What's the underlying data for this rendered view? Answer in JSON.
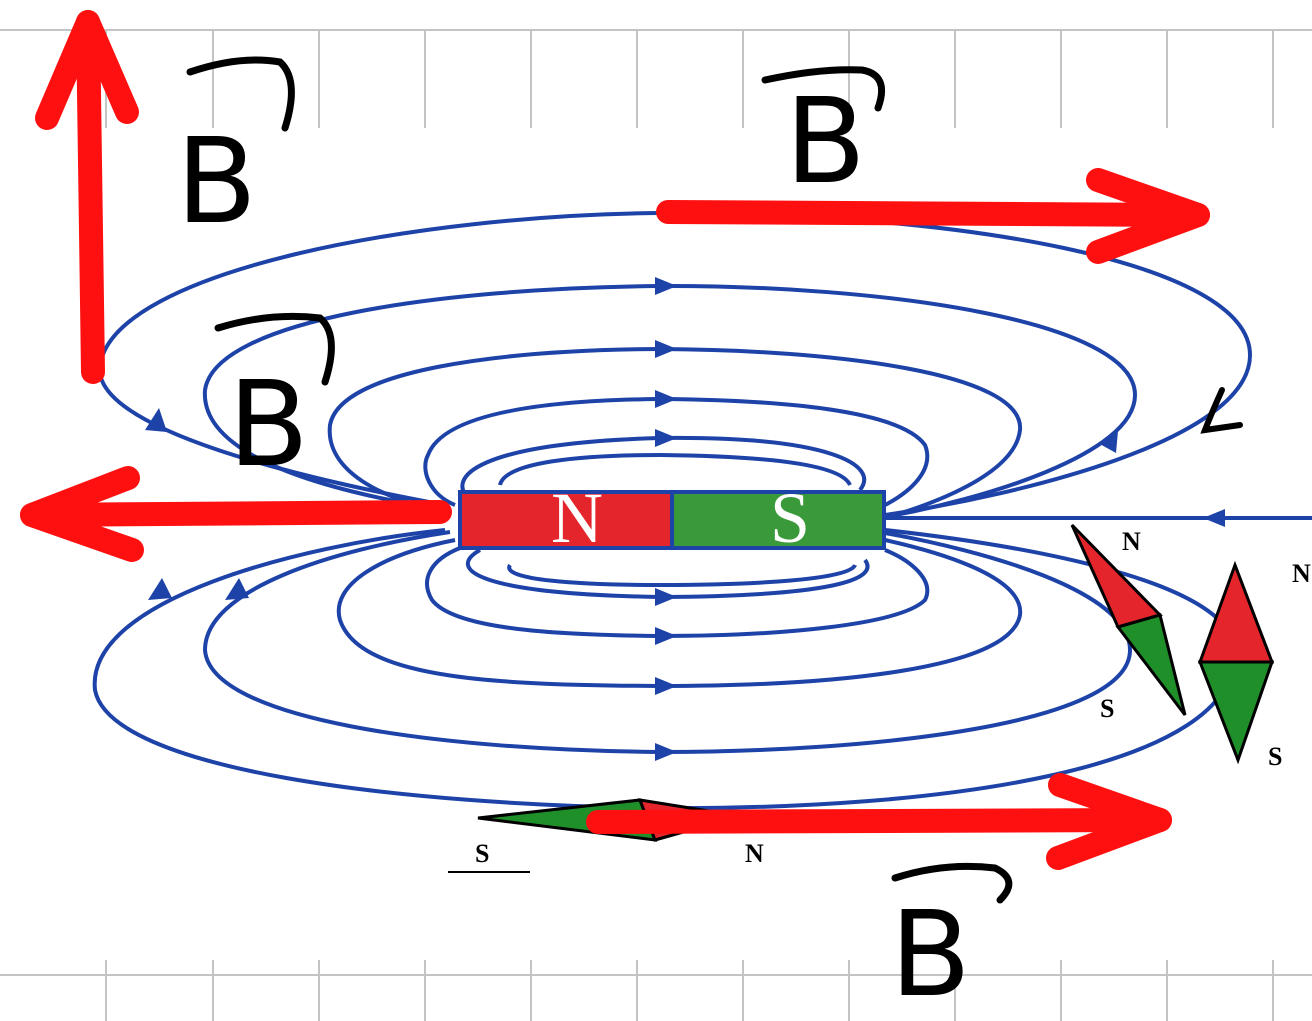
{
  "colors": {
    "field_line": "#1e43a8",
    "vector": "#ff1010",
    "north_pole": "#e4262c",
    "south_pole": "#3a9a3a",
    "grid": "#bdbdbd"
  },
  "magnet": {
    "north_label": "N",
    "south_label": "S"
  },
  "vectors": [
    {
      "id": "top-left",
      "label": "B"
    },
    {
      "id": "top-right",
      "label": "B"
    },
    {
      "id": "inner-left",
      "label": "B"
    },
    {
      "id": "bottom-right",
      "label": "B"
    }
  ],
  "compasses": [
    {
      "id": "tilted-right",
      "north": "N",
      "south": "S"
    },
    {
      "id": "vertical-right",
      "north": "N",
      "south": "S"
    },
    {
      "id": "bottom-horizontal",
      "north": "N",
      "south": "S"
    }
  ],
  "icons": [
    "magnet-icon",
    "compass-needle-icon",
    "field-line-arrow-icon"
  ]
}
